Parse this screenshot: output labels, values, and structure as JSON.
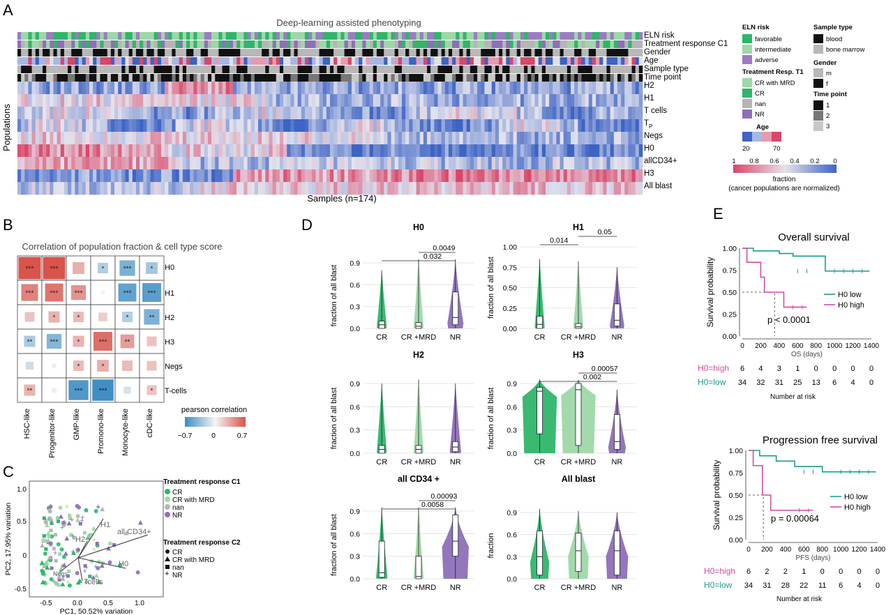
{
  "panel_letters": [
    "A",
    "B",
    "C",
    "D",
    "E"
  ],
  "panel_a": {
    "title": "Deep-learning assisted phenotyping",
    "annotation_rows": [
      "ELN risk",
      "Treatment response C1",
      "Gender",
      "Age",
      "Sample type",
      "Time point"
    ],
    "heatmap_rows": [
      "H2",
      "H1",
      "T cells",
      "T",
      "Negs",
      "H0",
      "allCD34+",
      "H3",
      "All blast"
    ],
    "tp_subscript": "P",
    "y_axis_label": "Populations",
    "x_axis_label": "Samples (n=174)",
    "legend": {
      "eln_title": "ELN risk",
      "eln_items": [
        {
          "label": "favorable",
          "color": "#2fb56a"
        },
        {
          "label": "intermediate",
          "color": "#9dd8a8"
        },
        {
          "label": "adverse",
          "color": "#9b7cc2"
        }
      ],
      "treat_title": "Treatment Resp. T1",
      "treat_items": [
        {
          "label": "CR with MRD",
          "color": "#9dd8a8"
        },
        {
          "label": "CR",
          "color": "#2fb56a"
        },
        {
          "label": "nan",
          "color": "#b5b5b5"
        },
        {
          "label": "NR",
          "color": "#8d6fb8"
        }
      ],
      "age_title": "Age",
      "age_ticks": [
        "20",
        "70"
      ],
      "sample_title": "Sample type",
      "sample_items": [
        {
          "label": "blood",
          "color": "#111111"
        },
        {
          "label": "bone marrow",
          "color": "#b8b8b8"
        }
      ],
      "gender_title": "Gender",
      "gender_items": [
        {
          "label": "m",
          "color": "#b8b8b8"
        },
        {
          "label": "f",
          "color": "#111111"
        }
      ],
      "time_title": "Time point",
      "time_items": [
        {
          "label": "1",
          "color": "#111111"
        },
        {
          "label": "2",
          "color": "#777777"
        },
        {
          "label": "3",
          "color": "#c8c8c8"
        }
      ],
      "fraction_ticks": [
        "1",
        "0.8",
        "0.6",
        "0.4",
        "0.2",
        "0"
      ],
      "fraction_label": "fraction",
      "fraction_sub": "(cancer populations are normalized)"
    },
    "colors": {
      "high": "#d9476a",
      "low": "#3d63c4",
      "mid": "#e4e4ee"
    }
  },
  "panel_b": {
    "title": "Correlation of population fraction & cell type score",
    "rows": [
      "H0",
      "H1",
      "H2",
      "H3",
      "Negs",
      "T-cells"
    ],
    "cols": [
      "HSC-like",
      "Progenitor-like",
      "GMP-like",
      "Promono-like",
      "Monocyte-like",
      "cDC-like"
    ],
    "values": [
      [
        0.72,
        0.72,
        0.3,
        -0.25,
        -0.45,
        -0.3
      ],
      [
        0.5,
        0.55,
        0.42,
        0.0,
        -0.55,
        -0.58
      ],
      [
        0.22,
        0.28,
        0.25,
        0.18,
        -0.25,
        -0.45
      ],
      [
        -0.28,
        -0.42,
        0.28,
        0.58,
        0.38,
        0.22
      ],
      [
        -0.15,
        0.02,
        0.25,
        0.3,
        0.25,
        0.22
      ],
      [
        0.28,
        0.03,
        -0.62,
        -0.68,
        -0.12,
        0.22
      ]
    ],
    "stars": [
      [
        "***",
        "***",
        "",
        "*",
        "***",
        "*"
      ],
      [
        "***",
        "***",
        "***",
        "",
        "***",
        "***"
      ],
      [
        "",
        "*",
        "*",
        "",
        "*",
        "**"
      ],
      [
        "**",
        "***",
        "*",
        "***",
        "**",
        ""
      ],
      [
        "",
        "",
        "*",
        "*",
        "",
        ""
      ],
      [
        "**",
        "",
        "***",
        "***",
        "",
        "*"
      ]
    ],
    "legend_title": "pearson correlation",
    "legend_ticks": [
      "−0.7",
      "0",
      "0.7"
    ]
  },
  "panel_c": {
    "x_label": "PC1, 50.52% variation",
    "y_label": "PC2, 17.95% variation",
    "x_ticks": [
      "-0.5",
      "0.0",
      "0.5",
      "1.0"
    ],
    "y_ticks": [
      "1.0",
      "0.5",
      "0",
      "-0.5"
    ],
    "arrow_labels": [
      "H1",
      "H2",
      "all CD34+",
      "H0",
      "Tcells",
      "Negs"
    ],
    "legend1_title": "Treatment response C1",
    "legend1_items": [
      {
        "label": "CR",
        "color": "#2fb56a"
      },
      {
        "label": "CR with MRD",
        "color": "#9dd8a8"
      },
      {
        "label": "nan",
        "color": "#b5b5b5"
      },
      {
        "label": "NR",
        "color": "#8d6fb8"
      }
    ],
    "legend2_title": "Treatment response C2",
    "legend2_items": [
      "CR",
      "CR with MRD",
      "nan",
      "NR"
    ]
  },
  "panel_d": {
    "y_label": "fraction of all blast",
    "y_label_last": "fraction",
    "groups": [
      "CR",
      "CR +MRD",
      "NR"
    ],
    "group_colors": [
      "#2fb56a",
      "#9dd8a8",
      "#8d6fb8"
    ],
    "plots": [
      {
        "title": "H0",
        "y_ticks": [
          "0.9",
          "0.6",
          "0.3",
          "0.0"
        ],
        "pvals": [
          "0.0049",
          "0.032"
        ]
      },
      {
        "title": "H1",
        "y_ticks": [
          "1.00",
          "0.75",
          "0.50",
          "0.25",
          "0.00"
        ],
        "pvals": [
          "0.05",
          "0.014"
        ]
      },
      {
        "title": "H2",
        "y_ticks": [
          "0.9",
          "0.6",
          "0.3",
          "0.0"
        ],
        "pvals": []
      },
      {
        "title": "H3",
        "y_ticks": [
          "0.9",
          "0.6",
          "0.3",
          "0.0"
        ],
        "pvals": [
          "0.00057",
          "0.002"
        ]
      },
      {
        "title": "all CD34 +",
        "y_ticks": [
          "0.9",
          "0.6",
          "0.3",
          "0.0"
        ],
        "pvals": [
          "0.00093",
          "0.0058"
        ]
      },
      {
        "title": "All blast",
        "y_ticks": [
          "0.9",
          "0.6",
          "0.3",
          "0.0"
        ],
        "pvals": []
      }
    ]
  },
  "panel_e": {
    "os": {
      "title": "Overall survival",
      "y_label": "Survival probability",
      "x_label": "OS (days)",
      "x_ticks": [
        "0",
        "200",
        "400",
        "600",
        "800",
        "1000",
        "1200",
        "1400"
      ],
      "y_ticks": [
        "1.00",
        "0.75",
        "0.50",
        "0.25",
        "0.00"
      ],
      "legend": [
        "H0 low",
        "H0 high"
      ],
      "pval": "p < 0.0001",
      "risk_high_label": "H0=high",
      "risk_low_label": "H0=low",
      "risk_high": [
        "6",
        "4",
        "3",
        "1",
        "0",
        "0",
        "0",
        "0"
      ],
      "risk_low": [
        "34",
        "32",
        "31",
        "25",
        "13",
        "6",
        "4",
        "0"
      ],
      "risk_title": "Number at risk"
    },
    "pfs": {
      "title": "Progression free survival",
      "y_label": "Survival probability",
      "x_label": "PFS (days)",
      "x_ticks": [
        "0",
        "200",
        "400",
        "600",
        "800",
        "1000",
        "1200",
        "1400"
      ],
      "y_ticks": [
        "1.00",
        "0.75",
        "0.50",
        "0.25",
        "0.00"
      ],
      "legend": [
        "H0 low",
        "H0 high"
      ],
      "pval": "p = 0.00064",
      "risk_high_label": "H0=high",
      "risk_low_label": "H0=low",
      "risk_high": [
        "6",
        "2",
        "2",
        "1",
        "0",
        "0",
        "0",
        "0"
      ],
      "risk_low": [
        "34",
        "31",
        "28",
        "22",
        "11",
        "6",
        "4",
        "0"
      ],
      "risk_title": "Number at risk"
    },
    "colors": {
      "low": "#1a9e8a",
      "high": "#d14fa0"
    }
  }
}
